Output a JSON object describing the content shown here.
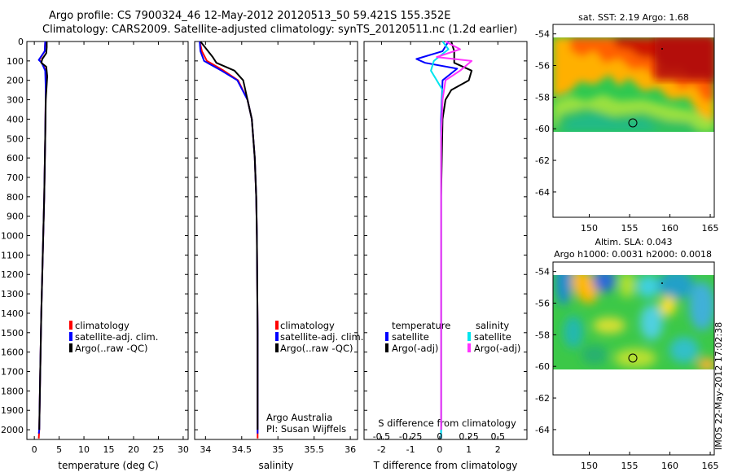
{
  "header": {
    "title_line1": "Argo profile: CS 7900324_46 12-May-2012 20120513_50 59.421S 155.352E",
    "title_line2": "Climatology: CARS2009. Satellite-adjusted climatology: synTS_20120511.nc (1.2d earlier)"
  },
  "depth_ticks": [
    0,
    100,
    200,
    300,
    400,
    500,
    600,
    700,
    800,
    900,
    1000,
    1100,
    1200,
    1300,
    1400,
    1500,
    1600,
    1700,
    1800,
    1900,
    2000
  ],
  "colors": {
    "climatology": "#ff0000",
    "satellite": "#0000ff",
    "argo": "#000000",
    "sal_satellite": "#00e5ee",
    "sal_argo": "#ff33ff"
  },
  "chart_data": [
    {
      "type": "line",
      "panel": "temperature",
      "xlabel": "temperature (deg C)",
      "xlim": [
        -1.5,
        31
      ],
      "ylim": [
        2050,
        0
      ],
      "xticks": [
        0,
        5,
        10,
        15,
        20,
        25,
        30
      ],
      "xticklabels": [
        "0",
        "5",
        "10",
        "15",
        "20",
        "25",
        "30"
      ],
      "legend": [
        "climatology",
        "satellite-adj. clim.",
        "Argo(..raw -QC)"
      ],
      "legend_position": "lower-center",
      "series": [
        {
          "name": "climatology",
          "color": "#ff0000",
          "points": [
            [
              2.2,
              0
            ],
            [
              2.1,
              50
            ],
            [
              1.0,
              95
            ],
            [
              1.5,
              110
            ],
            [
              2.3,
              150
            ],
            [
              2.3,
              250
            ],
            [
              2.2,
              500
            ],
            [
              2.0,
              800
            ],
            [
              1.7,
              1100
            ],
            [
              1.4,
              1400
            ],
            [
              1.2,
              1700
            ],
            [
              1.0,
              2000
            ],
            [
              0.9,
              2045
            ]
          ]
        },
        {
          "name": "satellite-adj. clim.",
          "color": "#0000ff",
          "points": [
            [
              2.2,
              0
            ],
            [
              2.1,
              50
            ],
            [
              0.9,
              95
            ],
            [
              1.5,
              110
            ],
            [
              2.2,
              150
            ],
            [
              2.3,
              250
            ],
            [
              2.2,
              500
            ],
            [
              2.0,
              800
            ],
            [
              1.7,
              1100
            ],
            [
              1.4,
              1400
            ],
            [
              1.2,
              1700
            ],
            [
              1.0,
              2000
            ],
            [
              0.9,
              2020
            ]
          ]
        },
        {
          "name": "Argo(..raw -QC)",
          "color": "#000000",
          "points": [
            [
              2.5,
              0
            ],
            [
              2.5,
              30
            ],
            [
              2.4,
              60
            ],
            [
              1.6,
              90
            ],
            [
              1.4,
              110
            ],
            [
              2.4,
              130
            ],
            [
              2.6,
              180
            ],
            [
              2.5,
              220
            ],
            [
              2.3,
              300
            ],
            [
              2.2,
              500
            ],
            [
              2.0,
              800
            ],
            [
              1.7,
              1100
            ],
            [
              1.4,
              1400
            ],
            [
              1.2,
              1700
            ],
            [
              1.0,
              2000
            ]
          ]
        }
      ]
    },
    {
      "type": "line",
      "panel": "salinity",
      "xlabel": "salinity",
      "xlim": [
        33.85,
        36.1
      ],
      "ylim": [
        2050,
        0
      ],
      "xticks": [
        34,
        34.5,
        35,
        35.5,
        36
      ],
      "xticklabels": [
        "34",
        "34.5",
        "35",
        "35.5",
        "36"
      ],
      "legend": [
        "climatology",
        "satellite-adj. clim.",
        "Argo(..raw -QC)"
      ],
      "legend_position": "lower-right",
      "annotation": [
        "Argo Australia",
        "PI: Susan Wijffels"
      ],
      "series": [
        {
          "name": "climatology",
          "color": "#ff0000",
          "points": [
            [
              33.92,
              0
            ],
            [
              33.95,
              50
            ],
            [
              34.02,
              100
            ],
            [
              34.25,
              150
            ],
            [
              34.45,
              200
            ],
            [
              34.58,
              300
            ],
            [
              34.64,
              400
            ],
            [
              34.68,
              600
            ],
            [
              34.7,
              800
            ],
            [
              34.71,
              1000
            ],
            [
              34.72,
              1500
            ],
            [
              34.72,
              2045
            ]
          ]
        },
        {
          "name": "satellite-adj. clim.",
          "color": "#0000ff",
          "points": [
            [
              33.92,
              0
            ],
            [
              33.93,
              50
            ],
            [
              33.98,
              100
            ],
            [
              34.22,
              150
            ],
            [
              34.44,
              200
            ],
            [
              34.58,
              300
            ],
            [
              34.64,
              400
            ],
            [
              34.68,
              600
            ],
            [
              34.7,
              800
            ],
            [
              34.71,
              1000
            ],
            [
              34.72,
              1500
            ],
            [
              34.72,
              2020
            ]
          ]
        },
        {
          "name": "Argo(..raw -QC)",
          "color": "#000000",
          "points": [
            [
              33.93,
              0
            ],
            [
              34.1,
              80
            ],
            [
              34.15,
              110
            ],
            [
              34.4,
              150
            ],
            [
              34.52,
              200
            ],
            [
              34.58,
              300
            ],
            [
              34.64,
              400
            ],
            [
              34.68,
              600
            ],
            [
              34.7,
              800
            ],
            [
              34.71,
              1000
            ],
            [
              34.72,
              1500
            ],
            [
              34.72,
              2000
            ]
          ]
        }
      ]
    },
    {
      "type": "line",
      "panel": "difference",
      "xlabel": "T difference from climatology",
      "xlabel2": "S difference from climatology",
      "xlim": [
        -2.6,
        3.0
      ],
      "ylim": [
        2050,
        0
      ],
      "xticks": [
        -2,
        -1,
        0,
        1,
        2
      ],
      "xticklabels": [
        "-2",
        "-1",
        "0",
        "1",
        "2"
      ],
      "sticks": [
        -0.5,
        -0.25,
        0,
        0.25,
        0.5
      ],
      "sticklabels": [
        "-0.5",
        "-0.25",
        "0",
        "0.25",
        "0.5"
      ],
      "legend_temperature_title": "temperature",
      "legend_salinity_title": "salinity",
      "legend_temperature": [
        "satellite",
        "Argo(-adj)"
      ],
      "legend_salinity": [
        "satellite",
        "Argo(-adj)"
      ],
      "series": [
        {
          "name": "temperature satellite",
          "color": "#0000ff",
          "points": [
            [
              0.3,
              0
            ],
            [
              0.1,
              50
            ],
            [
              -0.8,
              90
            ],
            [
              -0.5,
              110
            ],
            [
              0.6,
              140
            ],
            [
              0.1,
              200
            ],
            [
              0.05,
              400
            ],
            [
              0.05,
              800
            ],
            [
              0.05,
              1500
            ],
            [
              0.05,
              2045
            ]
          ]
        },
        {
          "name": "temperature Argo(-adj)",
          "color": "#000000",
          "points": [
            [
              0.4,
              0
            ],
            [
              0.5,
              50
            ],
            [
              0.5,
              110
            ],
            [
              1.1,
              150
            ],
            [
              1.0,
              200
            ],
            [
              0.4,
              250
            ],
            [
              0.2,
              300
            ],
            [
              0.1,
              400
            ],
            [
              0.05,
              800
            ],
            [
              0.05,
              1500
            ],
            [
              0.05,
              2000
            ]
          ]
        },
        {
          "name": "salinity satellite",
          "color": "#00e5ee",
          "points": [
            [
              0.1,
              0
            ],
            [
              0.3,
              40
            ],
            [
              -0.2,
              100
            ],
            [
              -0.3,
              150
            ],
            [
              0.1,
              250
            ],
            [
              0.05,
              500
            ],
            [
              0.05,
              1000
            ],
            [
              0.05,
              1500
            ],
            [
              0.05,
              2045
            ]
          ]
        },
        {
          "name": "salinity Argo(-adj)",
          "color": "#ff33ff",
          "points": [
            [
              0.2,
              0
            ],
            [
              0.7,
              40
            ],
            [
              -0.1,
              80
            ],
            [
              1.1,
              100
            ],
            [
              0.7,
              150
            ],
            [
              0.2,
              200
            ],
            [
              0.1,
              300
            ],
            [
              0.05,
              500
            ],
            [
              0.05,
              1000
            ],
            [
              0.05,
              1500
            ],
            [
              0.05,
              2000
            ]
          ]
        }
      ]
    },
    {
      "type": "heatmap",
      "panel": "sst_map",
      "title": "sat. SST: 2.19 Argo: 1.68",
      "xlim": [
        145.5,
        165.5
      ],
      "ylim": [
        -65.6,
        -53.4
      ],
      "xticks": [
        150,
        155,
        160,
        165
      ],
      "xticklabels": [
        "150",
        "155",
        "160",
        "165"
      ],
      "yticks": [
        -54,
        -56,
        -58,
        -60,
        -62,
        -64
      ],
      "yticklabels": [
        "-54",
        "-56",
        "-58",
        "-60",
        "-62",
        "-64"
      ],
      "data_extent_lat": [
        -60.1,
        -53.4
      ],
      "float_position": [
        155.35,
        -59.42
      ]
    },
    {
      "type": "heatmap",
      "panel": "sla_map",
      "title": "Altim. SLA: 0.043",
      "subtitle": "Argo h1000: 0.0031 h2000: 0.0018",
      "xlim": [
        145.5,
        165.5
      ],
      "ylim": [
        -65.6,
        -53.4
      ],
      "xticks": [
        150,
        155,
        160,
        165
      ],
      "xticklabels": [
        "150",
        "155",
        "160",
        "165"
      ],
      "yticks": [
        -54,
        -56,
        -58,
        -60,
        -62,
        -64
      ],
      "yticklabels": [
        "-54",
        "-56",
        "-58",
        "-60",
        "-62",
        "-64"
      ],
      "data_extent_lat": [
        -60.1,
        -53.4
      ],
      "float_position": [
        155.35,
        -59.42
      ]
    }
  ],
  "footer_stamp": "IMOS 22-May-2012 17:02:38"
}
